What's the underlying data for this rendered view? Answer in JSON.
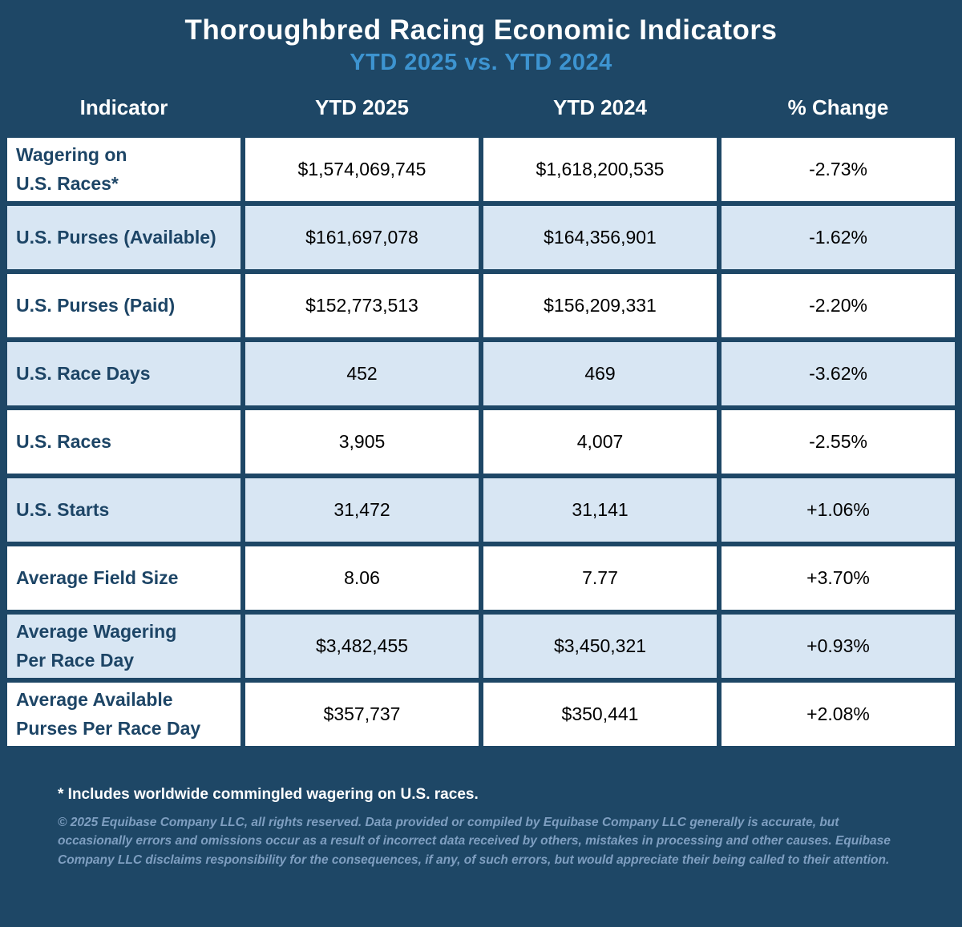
{
  "page": {
    "title": "Thoroughbred Racing Economic Indicators",
    "subtitle": "YTD 2025 vs. YTD 2024"
  },
  "table": {
    "headers": [
      "Indicator",
      "YTD 2025",
      "YTD 2024",
      "% Change"
    ],
    "rows": [
      {
        "indicator": "Wagering on\nU.S. Races*",
        "ytd2025": "$1,574,069,745",
        "ytd2024": "$1,618,200,535",
        "change": "-2.73%"
      },
      {
        "indicator": "U.S. Purses (Available)",
        "ytd2025": "$161,697,078",
        "ytd2024": "$164,356,901",
        "change": "-1.62%"
      },
      {
        "indicator": "U.S. Purses (Paid)",
        "ytd2025": "$152,773,513",
        "ytd2024": "$156,209,331",
        "change": "-2.20%"
      },
      {
        "indicator": "U.S. Race Days",
        "ytd2025": "452",
        "ytd2024": "469",
        "change": "-3.62%"
      },
      {
        "indicator": "U.S. Races",
        "ytd2025": "3,905",
        "ytd2024": "4,007",
        "change": "-2.55%"
      },
      {
        "indicator": "U.S. Starts",
        "ytd2025": "31,472",
        "ytd2024": "31,141",
        "change": "+1.06%"
      },
      {
        "indicator": "Average Field Size",
        "ytd2025": "8.06",
        "ytd2024": "7.77",
        "change": "+3.70%"
      },
      {
        "indicator": "Average Wagering\nPer Race Day",
        "ytd2025": "$3,482,455",
        "ytd2024": "$3,450,321",
        "change": "+0.93%"
      },
      {
        "indicator": "Average Available\nPurses Per Race Day",
        "ytd2025": "$357,737",
        "ytd2024": "$350,441",
        "change": "+2.08%"
      }
    ]
  },
  "footnotes": {
    "asterisk": "* Includes worldwide commingled wagering on U.S. races.",
    "copyright": "© 2025 Equibase Company LLC, all rights reserved. Data provided or compiled by Equibase Company LLC generally is accurate, but occasionally errors and omissions occur as a result of incorrect data received by others, mistakes in processing and other causes. Equibase Company LLC disclaims responsibility for the consequences, if any, of such errors, but would appreciate their being called to their attention."
  },
  "colors": {
    "background": "#1e4766",
    "subtitle_blue": "#3d94d1",
    "row_white": "#ffffff",
    "row_light_blue": "#d8e6f3",
    "label_navy": "#1d4566",
    "footer_steel_blue": "#7f9fc1",
    "title_white": "#ffffff"
  },
  "chart_data": {
    "type": "table",
    "title": "Thoroughbred Racing Economic Indicators",
    "subtitle": "YTD 2025 vs. YTD 2024",
    "columns": [
      "Indicator",
      "YTD 2025",
      "YTD 2024",
      "% Change"
    ],
    "rows": [
      [
        "Wagering on U.S. Races*",
        "$1,574,069,745",
        "$1,618,200,535",
        "-2.73%"
      ],
      [
        "U.S. Purses (Available)",
        "$161,697,078",
        "$164,356,901",
        "-1.62%"
      ],
      [
        "U.S. Purses (Paid)",
        "$152,773,513",
        "$156,209,331",
        "-2.20%"
      ],
      [
        "U.S. Race Days",
        "452",
        "469",
        "-3.62%"
      ],
      [
        "U.S. Races",
        "3,905",
        "4,007",
        "-2.55%"
      ],
      [
        "U.S. Starts",
        "31,472",
        "31,141",
        "+1.06%"
      ],
      [
        "Average Field Size",
        "8.06",
        "7.77",
        "+3.70%"
      ],
      [
        "Average Wagering Per Race Day",
        "$3,482,455",
        "$3,450,321",
        "+0.93%"
      ],
      [
        "Average Available Purses Per Race Day",
        "$357,737",
        "$350,441",
        "+2.08%"
      ]
    ],
    "notes": [
      "* Includes worldwide commingled wagering on U.S. races.",
      "© 2025 Equibase Company LLC, all rights reserved. Data provided or compiled by Equibase Company LLC generally is accurate, but occasionally errors and omissions occur as a result of incorrect data received by others, mistakes in processing and other causes. Equibase Company LLC disclaims responsibility for the consequences, if any, of such errors, but would appreciate their being called to their attention."
    ]
  }
}
